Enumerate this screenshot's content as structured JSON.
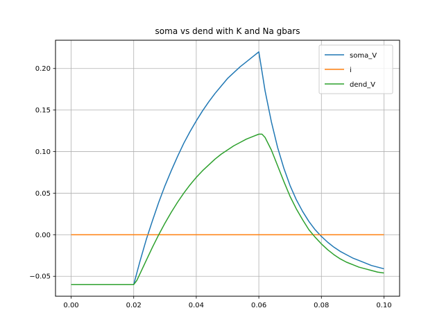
{
  "chart_data": {
    "type": "line",
    "title": "soma vs dend with K and Na gbars",
    "xlabel": "",
    "ylabel": "",
    "xlim": [
      -0.005,
      0.105
    ],
    "ylim": [
      -0.074,
      0.234
    ],
    "xticks": [
      0.0,
      0.02,
      0.04,
      0.06,
      0.08,
      0.1
    ],
    "xtick_labels": [
      "0.00",
      "0.02",
      "0.04",
      "0.06",
      "0.08",
      "0.10"
    ],
    "yticks": [
      -0.05,
      0.0,
      0.05,
      0.1,
      0.15,
      0.2
    ],
    "ytick_labels": [
      "−0.05",
      "0.00",
      "0.05",
      "0.10",
      "0.15",
      "0.20"
    ],
    "grid": true,
    "legend_position": "top-right",
    "series": [
      {
        "name": "soma_V",
        "color": "#1f77b4",
        "points": [
          [
            0.0,
            -0.06
          ],
          [
            0.02,
            -0.06
          ],
          [
            0.022,
            -0.032
          ],
          [
            0.024,
            -0.006
          ],
          [
            0.026,
            0.017
          ],
          [
            0.028,
            0.039
          ],
          [
            0.03,
            0.059
          ],
          [
            0.032,
            0.077
          ],
          [
            0.034,
            0.094
          ],
          [
            0.036,
            0.11
          ],
          [
            0.038,
            0.124
          ],
          [
            0.04,
            0.137
          ],
          [
            0.042,
            0.149
          ],
          [
            0.044,
            0.16
          ],
          [
            0.046,
            0.17
          ],
          [
            0.048,
            0.179
          ],
          [
            0.05,
            0.188
          ],
          [
            0.052,
            0.195
          ],
          [
            0.054,
            0.202
          ],
          [
            0.056,
            0.208
          ],
          [
            0.058,
            0.214
          ],
          [
            0.06,
            0.22
          ],
          [
            0.062,
            0.173
          ],
          [
            0.064,
            0.136
          ],
          [
            0.066,
            0.105
          ],
          [
            0.068,
            0.08
          ],
          [
            0.07,
            0.059
          ],
          [
            0.072,
            0.042
          ],
          [
            0.074,
            0.028
          ],
          [
            0.076,
            0.016
          ],
          [
            0.078,
            0.006
          ],
          [
            0.08,
            -0.002
          ],
          [
            0.082,
            -0.009
          ],
          [
            0.084,
            -0.015
          ],
          [
            0.086,
            -0.02
          ],
          [
            0.088,
            -0.024
          ],
          [
            0.09,
            -0.028
          ],
          [
            0.092,
            -0.031
          ],
          [
            0.094,
            -0.034
          ],
          [
            0.096,
            -0.037
          ],
          [
            0.098,
            -0.039
          ],
          [
            0.1,
            -0.041
          ]
        ]
      },
      {
        "name": "i",
        "color": "#ff7f0e",
        "points": [
          [
            0.0,
            0.0
          ],
          [
            0.02,
            0.0
          ],
          [
            0.04,
            0.0
          ],
          [
            0.06,
            0.0
          ],
          [
            0.08,
            0.0
          ],
          [
            0.1,
            0.0
          ]
        ]
      },
      {
        "name": "dend_V",
        "color": "#2ca02c",
        "points": [
          [
            0.0,
            -0.06
          ],
          [
            0.02,
            -0.06
          ],
          [
            0.021,
            -0.055
          ],
          [
            0.022,
            -0.047
          ],
          [
            0.024,
            -0.031
          ],
          [
            0.026,
            -0.015
          ],
          [
            0.028,
            0.0
          ],
          [
            0.03,
            0.014
          ],
          [
            0.032,
            0.027
          ],
          [
            0.034,
            0.039
          ],
          [
            0.036,
            0.05
          ],
          [
            0.038,
            0.06
          ],
          [
            0.04,
            0.069
          ],
          [
            0.042,
            0.077
          ],
          [
            0.044,
            0.084
          ],
          [
            0.046,
            0.091
          ],
          [
            0.048,
            0.097
          ],
          [
            0.05,
            0.102
          ],
          [
            0.052,
            0.107
          ],
          [
            0.054,
            0.111
          ],
          [
            0.056,
            0.115
          ],
          [
            0.058,
            0.118
          ],
          [
            0.06,
            0.121
          ],
          [
            0.061,
            0.121
          ],
          [
            0.062,
            0.117
          ],
          [
            0.064,
            0.102
          ],
          [
            0.066,
            0.083
          ],
          [
            0.068,
            0.064
          ],
          [
            0.07,
            0.046
          ],
          [
            0.072,
            0.031
          ],
          [
            0.074,
            0.018
          ],
          [
            0.076,
            0.006
          ],
          [
            0.078,
            -0.003
          ],
          [
            0.08,
            -0.011
          ],
          [
            0.082,
            -0.018
          ],
          [
            0.084,
            -0.024
          ],
          [
            0.086,
            -0.029
          ],
          [
            0.088,
            -0.033
          ],
          [
            0.09,
            -0.036
          ],
          [
            0.092,
            -0.039
          ],
          [
            0.094,
            -0.041
          ],
          [
            0.096,
            -0.043
          ],
          [
            0.098,
            -0.045
          ],
          [
            0.1,
            -0.046
          ]
        ]
      }
    ]
  }
}
